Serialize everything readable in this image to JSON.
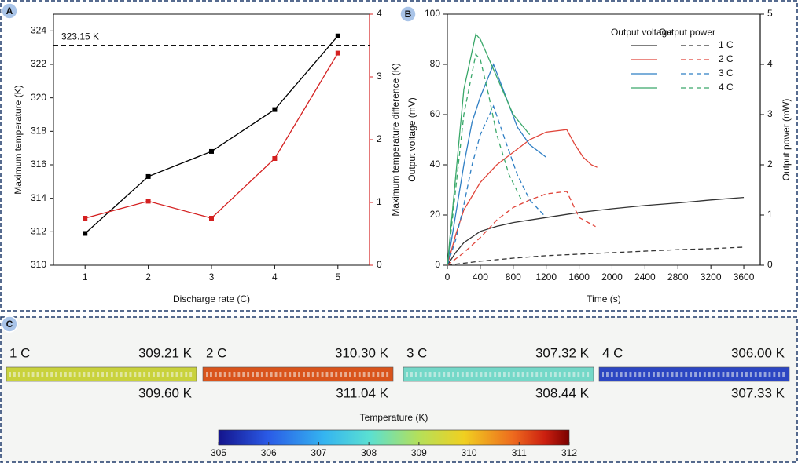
{
  "chart_data": [
    {
      "type": "line",
      "panel": "A",
      "x": [
        1,
        2,
        3,
        4,
        5
      ],
      "xlim": [
        0.5,
        5.5
      ],
      "xticks": [
        1,
        2,
        3,
        4,
        5
      ],
      "ylim": [
        310,
        325
      ],
      "yticks": [
        310,
        312,
        314,
        316,
        318,
        320,
        322,
        324
      ],
      "y2lim": [
        0,
        4
      ],
      "y2ticks": [
        0,
        1,
        2,
        3,
        4
      ],
      "xlabel": "Discharge rate (C)",
      "ylabel": "Maximum temperature (K)",
      "y2label": "Maximum temperature difference (K)",
      "y2color": "#d42020",
      "hline": {
        "value": 323.15,
        "label": "323.15 K"
      },
      "series": [
        {
          "color": "#000000",
          "values": [
            311.9,
            315.3,
            316.8,
            319.3,
            323.7
          ]
        },
        {
          "color": "#d42020",
          "axis": "y2",
          "values": [
            0.75,
            1.02,
            0.75,
            1.7,
            3.38
          ]
        }
      ]
    },
    {
      "type": "line",
      "panel": "B",
      "xlim": [
        0,
        3800
      ],
      "xticks": [
        0,
        400,
        800,
        1200,
        1600,
        2000,
        2400,
        2800,
        3200,
        3600
      ],
      "ylim": [
        0,
        100
      ],
      "yticks": [
        0,
        20,
        40,
        60,
        80,
        100
      ],
      "y2lim": [
        0,
        5
      ],
      "y2ticks": [
        0,
        1,
        2,
        3,
        4,
        5
      ],
      "xlabel": "Time (s)",
      "ylabel": "Output voltage (mV)",
      "y2label": "Output power (mW)",
      "legend_columns": [
        "Output voltage",
        "Output power"
      ],
      "series": [
        {
          "name": "1 C",
          "color": "#333333",
          "x": [
            0,
            100,
            200,
            400,
            600,
            800,
            1200,
            1600,
            2000,
            2400,
            2800,
            3200,
            3600
          ],
          "values": [
            0,
            5,
            9,
            13.5,
            15.5,
            17,
            19,
            21,
            22.5,
            23.8,
            24.8,
            26,
            27
          ]
        },
        {
          "name": "2 C",
          "color": "#e0453a",
          "x": [
            0,
            100,
            200,
            400,
            600,
            800,
            1000,
            1200,
            1450,
            1550,
            1650,
            1750,
            1820
          ],
          "values": [
            0,
            12,
            22,
            33,
            40,
            45,
            50,
            53,
            54,
            48,
            43,
            40,
            39
          ]
        },
        {
          "name": "3 C",
          "color": "#2f7fc4",
          "x": [
            0,
            100,
            200,
            300,
            400,
            560,
            700,
            850,
            1000,
            1200
          ],
          "values": [
            0,
            20,
            40,
            57,
            67,
            80,
            68,
            55,
            48,
            43
          ]
        },
        {
          "name": "4 C",
          "color": "#3aa86a",
          "x": [
            0,
            100,
            200,
            345,
            400,
            600,
            800,
            1000
          ],
          "values": [
            0,
            35,
            70,
            92,
            90,
            75,
            60,
            52
          ]
        },
        {
          "color": "#333333",
          "dash": true,
          "axis": "y2",
          "x": [
            0,
            400,
            800,
            1200,
            1600,
            2000,
            2400,
            2800,
            3200,
            3600
          ],
          "values": [
            0,
            0.08,
            0.14,
            0.19,
            0.22,
            0.25,
            0.28,
            0.31,
            0.33,
            0.36
          ]
        },
        {
          "color": "#e0453a",
          "dash": true,
          "axis": "y2",
          "x": [
            0,
            200,
            400,
            600,
            800,
            1000,
            1200,
            1450,
            1600,
            1800
          ],
          "values": [
            0,
            0.25,
            0.55,
            0.9,
            1.15,
            1.3,
            1.42,
            1.47,
            0.95,
            0.77
          ]
        },
        {
          "color": "#2f7fc4",
          "dash": true,
          "axis": "y2",
          "x": [
            0,
            100,
            200,
            300,
            400,
            560,
            700,
            850,
            1000,
            1200
          ],
          "values": [
            0,
            0.5,
            1.2,
            2.0,
            2.6,
            3.17,
            2.5,
            1.8,
            1.3,
            0.95
          ]
        },
        {
          "color": "#3aa86a",
          "dash": true,
          "axis": "y2",
          "x": [
            0,
            100,
            200,
            345,
            400,
            500,
            600,
            750,
            900
          ],
          "values": [
            0,
            1.5,
            3,
            4.2,
            4.1,
            3.4,
            2.6,
            1.8,
            1.3
          ]
        }
      ]
    }
  ],
  "heat_maps": {
    "panel": "C",
    "strips": [
      {
        "label": "1 C",
        "top": "309.21 K",
        "bottom": "309.60 K",
        "color": "#c9d23c"
      },
      {
        "label": "2 C",
        "top": "310.30 K",
        "bottom": "311.04 K",
        "color": "#d9541c"
      },
      {
        "label": "3 C",
        "top": "307.32 K",
        "bottom": "308.44 K",
        "color": "#74d8c8"
      },
      {
        "label": "4 C",
        "top": "306.00 K",
        "bottom": "307.33 K",
        "color": "#2c46c2"
      }
    ],
    "colorbar": {
      "title": "Temperature (K)",
      "lim": [
        305,
        312
      ],
      "ticks": [
        305,
        306,
        307,
        308,
        309,
        310,
        311,
        312
      ]
    }
  }
}
